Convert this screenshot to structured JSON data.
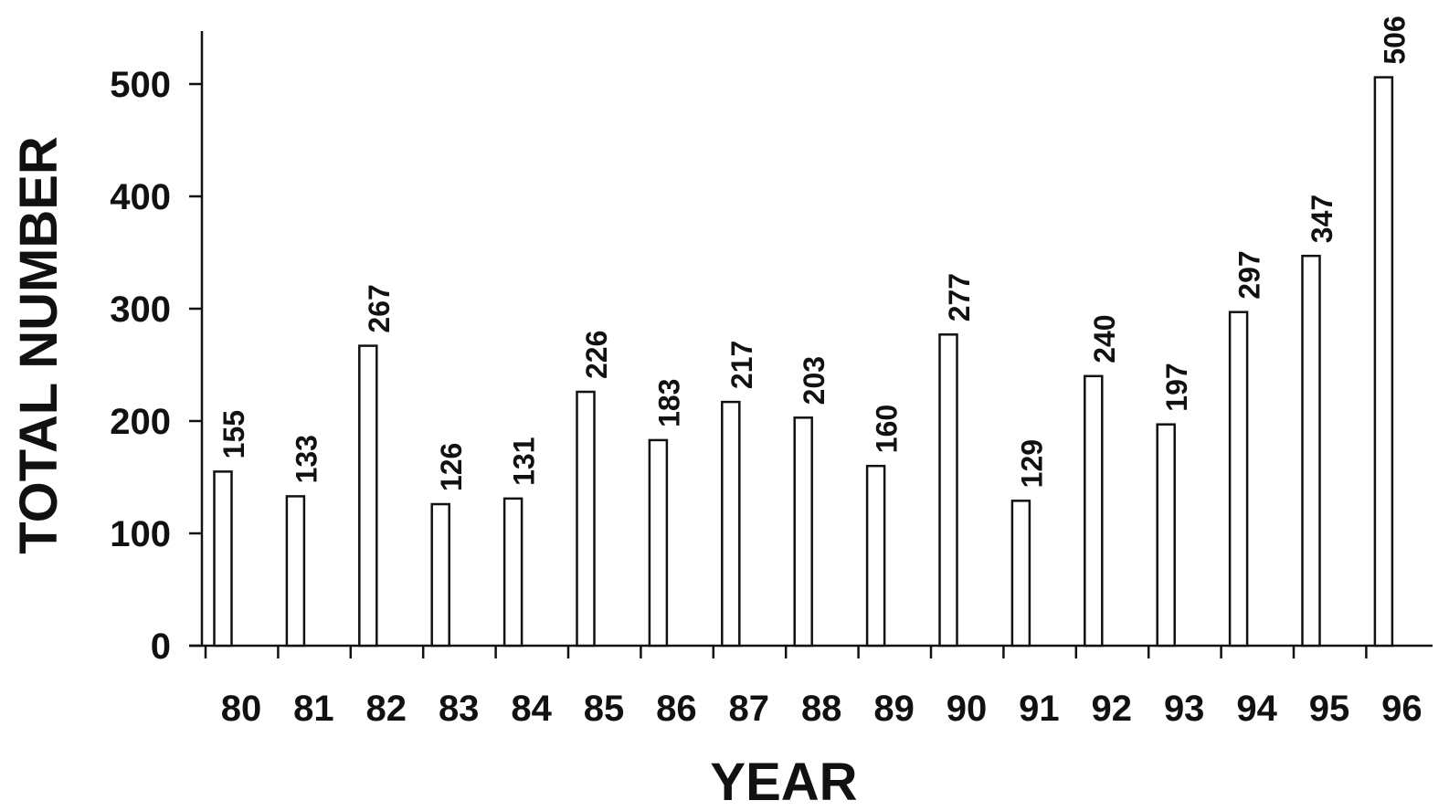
{
  "chart_data": {
    "type": "bar",
    "title": "",
    "xlabel": "YEAR",
    "ylabel": "TOTAL NUMBER",
    "categories": [
      "80",
      "81",
      "82",
      "83",
      "84",
      "85",
      "86",
      "87",
      "88",
      "89",
      "90",
      "91",
      "92",
      "93",
      "94",
      "95",
      "96"
    ],
    "values": [
      155,
      133,
      267,
      126,
      131,
      226,
      183,
      217,
      203,
      160,
      277,
      129,
      240,
      197,
      297,
      347,
      506
    ],
    "data_labels": [
      "155",
      "133",
      "267",
      "126",
      "131",
      "226",
      "183",
      "217",
      "203",
      "160",
      "277",
      "129",
      "240",
      "197",
      "297",
      "347",
      "506"
    ],
    "ylim": [
      0,
      550
    ],
    "yticks": [
      0,
      100,
      200,
      300,
      400,
      500
    ],
    "ytick_labels": [
      "0",
      "100",
      "200",
      "300",
      "400",
      "500"
    ],
    "grid": false,
    "legend": "none",
    "colors": {
      "bar_fill": "#ffffff",
      "bar_stroke": "#111111",
      "text": "#111111"
    }
  }
}
